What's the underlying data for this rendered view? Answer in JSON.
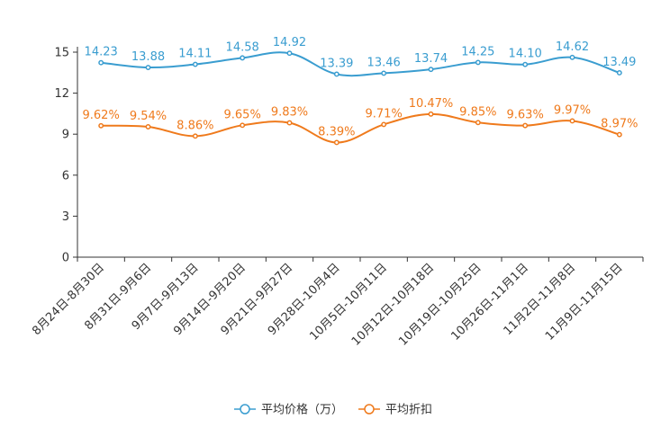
{
  "chart_data": {
    "type": "line",
    "title": "",
    "xlabel": "",
    "ylabel": "",
    "ylim": [
      0,
      15
    ],
    "yticks": [
      0,
      3,
      6,
      9,
      12,
      15
    ],
    "categories": [
      "8月24日-8月30日",
      "8月31日-9月6日",
      "9月7日-9月13日",
      "9月14日-9月20日",
      "9月21日-9月27日",
      "9月28日-10月4日",
      "10月5日-10月11日",
      "10月12日-10月18日",
      "10月19日-10月25日",
      "10月26日-11月1日",
      "11月2日-11月8日",
      "11月9日-11月15日"
    ],
    "series": [
      {
        "name": "平均价格（万）",
        "color": "#3a9dd0",
        "values": [
          14.23,
          13.88,
          14.11,
          14.58,
          14.92,
          13.39,
          13.46,
          13.74,
          14.25,
          14.1,
          14.62,
          13.49
        ],
        "labels": [
          "14.23",
          "13.88",
          "14.11",
          "14.58",
          "14.92",
          "13.39",
          "13.46",
          "13.74",
          "14.25",
          "14.10",
          "14.62",
          "13.49"
        ]
      },
      {
        "name": "平均折扣",
        "color": "#ef7a1c",
        "values": [
          9.62,
          9.54,
          8.86,
          9.65,
          9.83,
          8.39,
          9.71,
          10.47,
          9.85,
          9.63,
          9.97,
          8.97
        ],
        "labels": [
          "9.62%",
          "9.54%",
          "8.86%",
          "9.65%",
          "9.83%",
          "8.39%",
          "9.71%",
          "10.47%",
          "9.85%",
          "9.63%",
          "9.97%",
          "8.97%"
        ]
      }
    ],
    "legend_position": "bottom-center",
    "grid": false
  }
}
